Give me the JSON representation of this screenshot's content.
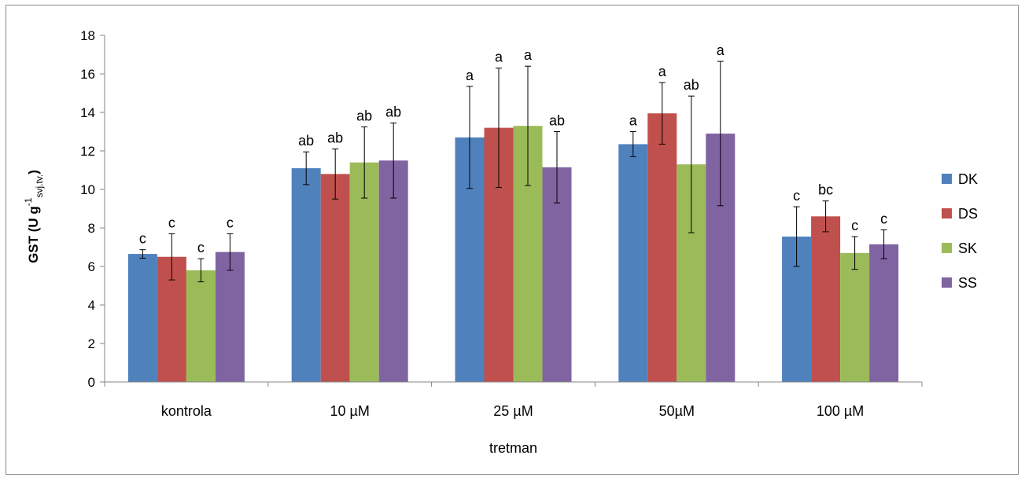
{
  "chart_data": {
    "type": "bar",
    "categories": [
      "kontrola",
      "10 µM",
      "25 µM",
      "50µM",
      "100 µM"
    ],
    "series": [
      {
        "name": "DK",
        "color": "#4F81BD",
        "values": [
          6.65,
          11.1,
          12.7,
          12.35,
          7.55
        ],
        "errors": [
          0.22,
          0.85,
          2.65,
          0.65,
          1.55
        ],
        "significance": [
          "c",
          "ab",
          "a",
          "a",
          "c"
        ]
      },
      {
        "name": "DS",
        "color": "#C0504D",
        "values": [
          6.5,
          10.8,
          13.2,
          13.95,
          8.6
        ],
        "errors": [
          1.2,
          1.3,
          3.1,
          1.6,
          0.8
        ],
        "significance": [
          "c",
          "ab",
          "a",
          "a",
          "bc"
        ]
      },
      {
        "name": "SK",
        "color": "#9BBB59",
        "values": [
          5.8,
          11.4,
          13.3,
          11.3,
          6.7
        ],
        "errors": [
          0.6,
          1.85,
          3.1,
          3.55,
          0.85
        ],
        "significance": [
          "c",
          "ab",
          "a",
          "ab",
          "c"
        ]
      },
      {
        "name": "SS",
        "color": "#8064A2",
        "values": [
          6.75,
          11.5,
          11.15,
          12.9,
          7.15
        ],
        "errors": [
          0.95,
          1.95,
          1.85,
          3.75,
          0.75
        ],
        "significance": [
          "c",
          "ab",
          "ab",
          "a",
          "c"
        ]
      }
    ],
    "xlabel": "tretman",
    "ylabel": {
      "main": "GST (U g",
      "sup": "-1",
      "sub": "svj.tv.",
      "close": ")"
    },
    "ylim": [
      0,
      18
    ],
    "yticks": [
      "0",
      "2",
      "4",
      "6",
      "8",
      "10",
      "12",
      "14",
      "16",
      "18"
    ],
    "grid": false,
    "legend_position": "right"
  }
}
